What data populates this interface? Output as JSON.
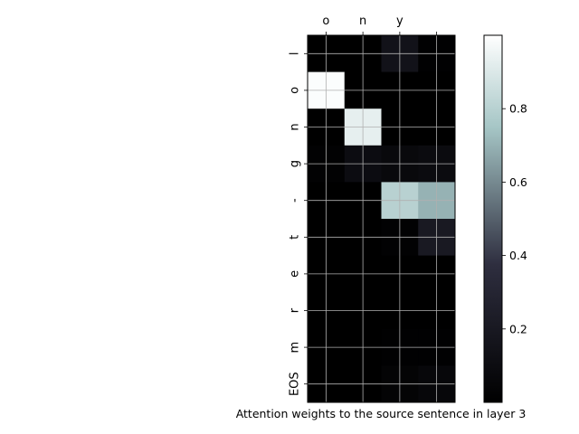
{
  "chart_data": {
    "type": "heatmap",
    "title": "",
    "xlabel": "Attention weights to the source sentence in layer 3",
    "ylabel": "",
    "x_tick_position": "top",
    "x_labels": [
      "o",
      "n",
      "y",
      ""
    ],
    "y_labels": [
      "l",
      "o",
      "n",
      "g",
      "-",
      "t",
      "e",
      "r",
      "m",
      "EOS"
    ],
    "values": [
      [
        0.0,
        0.0,
        0.15,
        0.01
      ],
      [
        0.99,
        0.0,
        0.0,
        0.0
      ],
      [
        0.0,
        0.93,
        0.0,
        0.0
      ],
      [
        0.02,
        0.1,
        0.07,
        0.09
      ],
      [
        0.0,
        0.0,
        0.8,
        0.7
      ],
      [
        0.0,
        0.0,
        0.02,
        0.2
      ],
      [
        0.0,
        0.0,
        0.0,
        0.0
      ],
      [
        0.0,
        0.0,
        0.0,
        0.0
      ],
      [
        0.0,
        0.0,
        0.01,
        0.01
      ],
      [
        0.0,
        0.0,
        0.03,
        0.06
      ]
    ],
    "colormap": "bone",
    "colorbar": {
      "range": [
        0.0,
        1.0
      ],
      "ticks": [
        0.2,
        0.4,
        0.6,
        0.8
      ],
      "tick_labels": [
        "0.2",
        "0.4",
        "0.6",
        "0.8"
      ]
    },
    "grid": true
  }
}
